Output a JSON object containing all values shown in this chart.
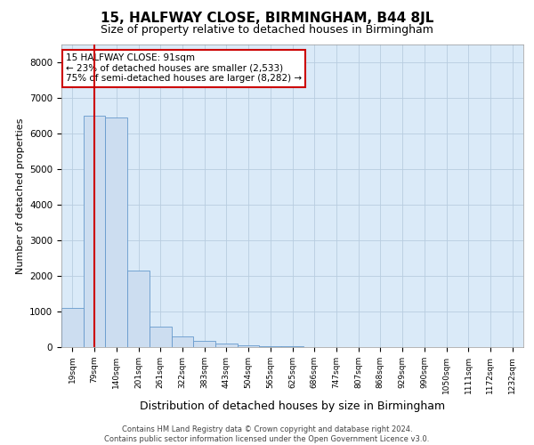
{
  "title": "15, HALFWAY CLOSE, BIRMINGHAM, B44 8JL",
  "subtitle": "Size of property relative to detached houses in Birmingham",
  "xlabel": "Distribution of detached houses by size in Birmingham",
  "ylabel": "Number of detached properties",
  "footer_line1": "Contains HM Land Registry data © Crown copyright and database right 2024.",
  "footer_line2": "Contains public sector information licensed under the Open Government Licence v3.0.",
  "bar_labels": [
    "19sqm",
    "79sqm",
    "140sqm",
    "201sqm",
    "261sqm",
    "322sqm",
    "383sqm",
    "443sqm",
    "504sqm",
    "565sqm",
    "625sqm",
    "686sqm",
    "747sqm",
    "807sqm",
    "868sqm",
    "929sqm",
    "990sqm",
    "1050sqm",
    "1111sqm",
    "1172sqm",
    "1232sqm"
  ],
  "bar_values": [
    1100,
    6500,
    6450,
    2150,
    580,
    300,
    170,
    100,
    55,
    30,
    20,
    0,
    0,
    0,
    0,
    0,
    0,
    0,
    0,
    0,
    0
  ],
  "bar_color": "#ccddf0",
  "bar_edge_color": "#6699cc",
  "annotation_title": "15 HALFWAY CLOSE: 91sqm",
  "annotation_line1": "← 23% of detached houses are smaller (2,533)",
  "annotation_line2": "75% of semi-detached houses are larger (8,282) →",
  "annotation_box_facecolor": "#ffffff",
  "annotation_box_edgecolor": "#cc0000",
  "red_line_x": 1.0,
  "ylim": [
    0,
    8500
  ],
  "yticks": [
    0,
    1000,
    2000,
    3000,
    4000,
    5000,
    6000,
    7000,
    8000
  ],
  "grid_color": "#b8cde0",
  "bg_color": "#daeaf8",
  "title_fontsize": 11,
  "subtitle_fontsize": 9,
  "ylabel_fontsize": 8,
  "xlabel_fontsize": 9,
  "tick_fontsize": 7.5,
  "xtick_fontsize": 6.5,
  "ann_fontsize": 7.5
}
